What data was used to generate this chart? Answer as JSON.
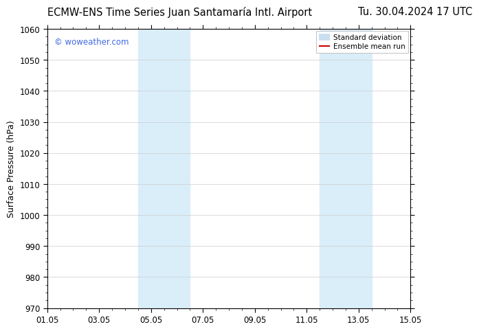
{
  "title": "ECMW-ENS Time Series Juan Santamaría Intl. Airport",
  "date_label": "Tu. 30.04.2024 17 UTC",
  "ylabel": "Surface Pressure (hPa)",
  "ylim": [
    970,
    1060
  ],
  "yticks": [
    970,
    980,
    990,
    1000,
    1010,
    1020,
    1030,
    1040,
    1050,
    1060
  ],
  "xtick_labels": [
    "01.05",
    "03.05",
    "05.05",
    "07.05",
    "09.05",
    "11.05",
    "13.05",
    "15.05"
  ],
  "xtick_positions": [
    0,
    2,
    4,
    6,
    8,
    10,
    12,
    14
  ],
  "x_range": [
    0,
    14
  ],
  "shaded_bands": [
    {
      "x_start": 3.5,
      "x_end": 5.5
    },
    {
      "x_start": 10.5,
      "x_end": 12.5
    }
  ],
  "shaded_color": "#daeef9",
  "background_color": "#ffffff",
  "plot_bg_color": "#ffffff",
  "watermark_text": "© woweather.com",
  "watermark_color": "#4169e1",
  "legend_entries": [
    "Standard deviation",
    "Ensemble mean run"
  ],
  "legend_line_colors": [
    "#c8dff0",
    "#cc0000"
  ],
  "title_fontsize": 10.5,
  "axis_fontsize": 9,
  "tick_fontsize": 8.5,
  "grid_color": "#cccccc",
  "border_color": "#000000",
  "minor_tick_count": 3
}
